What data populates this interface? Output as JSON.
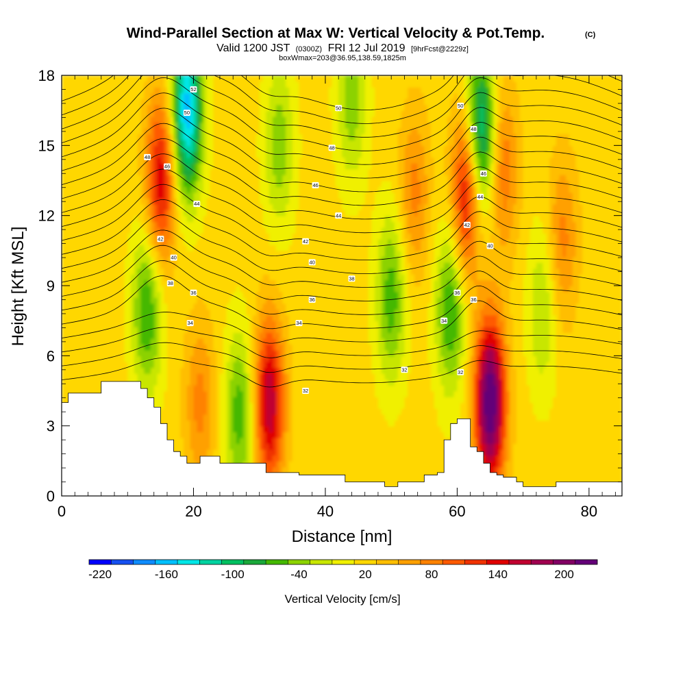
{
  "chart_data": {
    "type": "heatmap",
    "title": "Wind-Parallel Section at Max W: Vertical Velocity & Pot.Temp.",
    "title_mark": "(C)",
    "subtitle_parts": [
      "Valid 1200 JST",
      "(0300Z)",
      "FRI 12 Jul 2019",
      "[9hrFcst@2229z]"
    ],
    "subtitle2": "boxWmax=203@36.95,138.59,1825m",
    "xlabel": "Distance [nm]",
    "ylabel": "Height [Kft MSL]",
    "xlim": [
      0,
      85
    ],
    "ylim": [
      0,
      18
    ],
    "x_ticks": [
      0,
      20,
      40,
      60,
      80
    ],
    "x_tick_labels": [
      "0",
      "20",
      "40",
      "60",
      "80"
    ],
    "y_ticks": [
      0,
      3,
      6,
      9,
      12,
      15,
      18
    ],
    "y_tick_labels": [
      "0",
      "3",
      "6",
      "9",
      "12",
      "15",
      "18"
    ],
    "colorbar": {
      "label": "Vertical Velocity [cm/s]",
      "min": -230,
      "max": 230,
      "step": 20,
      "tick_values": [
        -220,
        -160,
        -100,
        -40,
        20,
        80,
        140,
        200
      ],
      "tick_labels": [
        "-220",
        "-160",
        "-100",
        "-40",
        "20",
        "80",
        "140",
        "200"
      ],
      "colors": [
        "#0000ff",
        "#1650f0",
        "#0f8cff",
        "#00c0ff",
        "#00e6e6",
        "#00d2a0",
        "#00c060",
        "#1aa83a",
        "#44b800",
        "#8cd200",
        "#c8e600",
        "#f0f000",
        "#ffd700",
        "#ffbe00",
        "#ffa000",
        "#ff8200",
        "#ff5a00",
        "#f03200",
        "#e00000",
        "#c00030",
        "#a00050",
        "#820064",
        "#640078"
      ]
    },
    "vertical_velocity_cores": [
      {
        "x": 15,
        "y": 13.5,
        "value": 130
      },
      {
        "x": 19,
        "y": 16.5,
        "value": -180
      },
      {
        "x": 13,
        "y": 8,
        "value": -90
      },
      {
        "x": 21,
        "y": 4,
        "value": 60
      },
      {
        "x": 27,
        "y": 3.5,
        "value": -80
      },
      {
        "x": 31.5,
        "y": 4,
        "value": 150
      },
      {
        "x": 33,
        "y": 15,
        "value": -60
      },
      {
        "x": 44,
        "y": 17,
        "value": -60
      },
      {
        "x": 50,
        "y": 8.5,
        "value": -80
      },
      {
        "x": 53.5,
        "y": 13,
        "value": 60
      },
      {
        "x": 59,
        "y": 8,
        "value": -90
      },
      {
        "x": 61.5,
        "y": 13,
        "value": 140
      },
      {
        "x": 63.5,
        "y": 15.5,
        "value": -150
      },
      {
        "x": 65,
        "y": 4,
        "value": 220
      },
      {
        "x": 67,
        "y": 14,
        "value": 70
      },
      {
        "x": 73,
        "y": 8,
        "value": -50
      },
      {
        "x": 76,
        "y": 11,
        "value": 60
      }
    ],
    "terrain": {
      "x": [
        0,
        1,
        2,
        3,
        4,
        5,
        6,
        7,
        8,
        9,
        10,
        11,
        12,
        13,
        14,
        15,
        16,
        17,
        18,
        19,
        20,
        21,
        22,
        23,
        24,
        25,
        26,
        27,
        28,
        29,
        30,
        31,
        32,
        33,
        34,
        35,
        36,
        37,
        38,
        39,
        40,
        41,
        42,
        43,
        44,
        45,
        46,
        47,
        48,
        49,
        50,
        51,
        52,
        53,
        54,
        55,
        56,
        57,
        58,
        59,
        60,
        61,
        62,
        63,
        64,
        65,
        66,
        67,
        68,
        69,
        70,
        71,
        72,
        73,
        74,
        75,
        76,
        77,
        78,
        79,
        80,
        81,
        82,
        83,
        84,
        85
      ],
      "height_kft": [
        4.0,
        4.4,
        4.4,
        4.4,
        4.4,
        4.4,
        4.9,
        4.9,
        4.9,
        4.9,
        4.9,
        4.9,
        4.6,
        4.2,
        3.8,
        3.1,
        2.4,
        1.9,
        1.7,
        1.4,
        1.4,
        1.7,
        1.7,
        1.7,
        1.4,
        1.4,
        1.4,
        1.4,
        1.4,
        1.4,
        1.4,
        1.0,
        1.0,
        1.0,
        1.0,
        1.0,
        0.9,
        0.9,
        0.9,
        0.9,
        0.9,
        0.9,
        0.9,
        0.6,
        0.6,
        0.6,
        0.6,
        0.6,
        0.6,
        0.4,
        0.4,
        0.6,
        0.6,
        0.6,
        0.6,
        0.9,
        0.9,
        1.0,
        2.4,
        3.1,
        3.3,
        3.3,
        2.1,
        1.9,
        1.4,
        1.0,
        0.9,
        0.8,
        0.8,
        0.6,
        0.4,
        0.4,
        0.4,
        0.4,
        0.4,
        0.6,
        0.6,
        0.6,
        0.6,
        0.6,
        0.6,
        0.6,
        0.6,
        0.6,
        0.6,
        0.6
      ]
    },
    "potential_temperature": {
      "units": "C",
      "contour_values": [
        32,
        33,
        34,
        35,
        36,
        37,
        38,
        39,
        40,
        41,
        42,
        43,
        44,
        45,
        46,
        47,
        48,
        49,
        50,
        51,
        52
      ],
      "labels": [
        {
          "x": 37,
          "y": 4.5,
          "text": "32"
        },
        {
          "x": 52,
          "y": 5.4,
          "text": "32"
        },
        {
          "x": 60.5,
          "y": 5.3,
          "text": "32"
        },
        {
          "x": 19.5,
          "y": 7.4,
          "text": "34"
        },
        {
          "x": 36,
          "y": 7.4,
          "text": "34"
        },
        {
          "x": 58,
          "y": 7.5,
          "text": "34"
        },
        {
          "x": 20,
          "y": 8.7,
          "text": "36"
        },
        {
          "x": 38,
          "y": 8.4,
          "text": "36"
        },
        {
          "x": 60,
          "y": 8.7,
          "text": "36"
        },
        {
          "x": 62.5,
          "y": 8.4,
          "text": "36"
        },
        {
          "x": 16.5,
          "y": 9.1,
          "text": "38"
        },
        {
          "x": 44,
          "y": 9.3,
          "text": "38"
        },
        {
          "x": 17,
          "y": 10.2,
          "text": "40"
        },
        {
          "x": 38,
          "y": 10.0,
          "text": "40"
        },
        {
          "x": 65,
          "y": 10.7,
          "text": "40"
        },
        {
          "x": 15,
          "y": 11.0,
          "text": "42"
        },
        {
          "x": 37,
          "y": 10.9,
          "text": "42"
        },
        {
          "x": 61.5,
          "y": 11.6,
          "text": "42"
        },
        {
          "x": 20.5,
          "y": 12.5,
          "text": "44"
        },
        {
          "x": 42,
          "y": 12.0,
          "text": "44"
        },
        {
          "x": 63.5,
          "y": 12.8,
          "text": "44"
        },
        {
          "x": 16,
          "y": 14.1,
          "text": "46"
        },
        {
          "x": 38.5,
          "y": 13.3,
          "text": "46"
        },
        {
          "x": 64,
          "y": 13.8,
          "text": "46"
        },
        {
          "x": 13,
          "y": 14.5,
          "text": "48"
        },
        {
          "x": 41,
          "y": 14.9,
          "text": "48"
        },
        {
          "x": 62.5,
          "y": 15.7,
          "text": "48"
        },
        {
          "x": 19,
          "y": 16.4,
          "text": "50"
        },
        {
          "x": 42,
          "y": 16.6,
          "text": "50"
        },
        {
          "x": 60.5,
          "y": 16.7,
          "text": "50"
        },
        {
          "x": 20,
          "y": 17.4,
          "text": "52"
        }
      ]
    }
  }
}
